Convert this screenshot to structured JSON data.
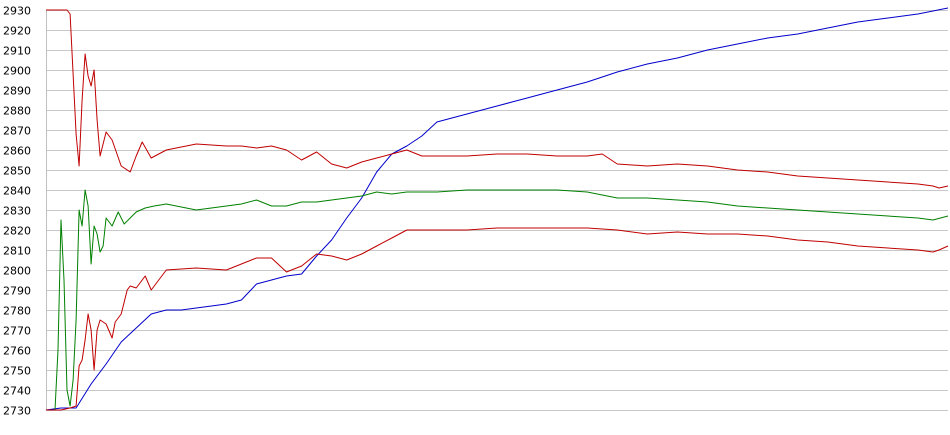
{
  "chart_data": {
    "type": "line",
    "title": "",
    "xlabel": "",
    "ylabel": "",
    "ylim": [
      2730,
      2930
    ],
    "xlim": [
      0,
      300
    ],
    "grid": true,
    "y_ticks": [
      "2930",
      "2920",
      "2910",
      "2900",
      "2890",
      "2880",
      "2870",
      "2860",
      "2850",
      "2840",
      "2830",
      "2820",
      "2810",
      "2800",
      "2790",
      "2780",
      "2770",
      "2760",
      "2750",
      "2740",
      "2730"
    ],
    "colors": {
      "blue": "#0000cc",
      "red": "#c00000",
      "green": "#008000"
    },
    "series": [
      {
        "color": "#0000cc",
        "x": [
          0,
          5,
          10,
          15,
          20,
          25,
          30,
          35,
          40,
          45,
          50,
          55,
          60,
          65,
          70,
          75,
          80,
          85,
          90,
          95,
          100,
          105,
          110,
          115,
          120,
          125,
          130,
          135,
          140,
          145,
          150,
          155,
          160,
          165,
          170,
          180,
          190,
          200,
          210,
          220,
          230,
          240,
          250,
          260,
          270,
          280,
          290,
          300
        ],
        "y": [
          2730,
          2731,
          2731,
          2743,
          2753,
          2764,
          2771,
          2778,
          2780,
          2780,
          2781,
          2782,
          2783,
          2785,
          2793,
          2795,
          2797,
          2798,
          2807,
          2815,
          2826,
          2836,
          2849,
          2858,
          2862,
          2867,
          2874,
          2876,
          2878,
          2880,
          2882,
          2884,
          2886,
          2888,
          2890,
          2894,
          2899,
          2903,
          2906,
          2910,
          2913,
          2916,
          2918,
          2921,
          2924,
          2926,
          2928,
          2931
        ]
      },
      {
        "color": "#c00000",
        "x": [
          0,
          5,
          7,
          8,
          9,
          10,
          11,
          12,
          13,
          14,
          15,
          16,
          17,
          18,
          20,
          22,
          25,
          28,
          30,
          32,
          35,
          40,
          50,
          60,
          65,
          70,
          75,
          80,
          85,
          90,
          95,
          100,
          105,
          110,
          115,
          120,
          125,
          130,
          140,
          150,
          160,
          170,
          180,
          185,
          190,
          200,
          210,
          220,
          230,
          240,
          250,
          260,
          270,
          280,
          290,
          295,
          297,
          300
        ],
        "y": [
          2930,
          2930,
          2930,
          2928,
          2898,
          2868,
          2852,
          2885,
          2908,
          2897,
          2892,
          2900,
          2875,
          2857,
          2869,
          2865,
          2852,
          2849,
          2857,
          2864,
          2856,
          2860,
          2863,
          2862,
          2862,
          2861,
          2862,
          2860,
          2855,
          2859,
          2853,
          2851,
          2854,
          2856,
          2858,
          2860,
          2857,
          2857,
          2857,
          2858,
          2858,
          2857,
          2857,
          2858,
          2853,
          2852,
          2853,
          2852,
          2850,
          2849,
          2847,
          2846,
          2845,
          2844,
          2843,
          2842,
          2841,
          2842
        ]
      },
      {
        "color": "#008000",
        "x": [
          0,
          3,
          4,
          5,
          6,
          7,
          8,
          9,
          10,
          11,
          12,
          13,
          14,
          15,
          16,
          17,
          18,
          19,
          20,
          22,
          24,
          26,
          28,
          30,
          33,
          36,
          40,
          50,
          60,
          65,
          70,
          75,
          80,
          85,
          90,
          95,
          100,
          105,
          110,
          115,
          120,
          125,
          130,
          140,
          150,
          160,
          170,
          180,
          190,
          200,
          210,
          220,
          230,
          240,
          250,
          260,
          270,
          280,
          290,
          295,
          300
        ],
        "y": [
          2730,
          2730,
          2760,
          2825,
          2795,
          2740,
          2732,
          2745,
          2775,
          2830,
          2822,
          2840,
          2832,
          2803,
          2822,
          2818,
          2809,
          2812,
          2826,
          2822,
          2829,
          2823,
          2826,
          2829,
          2831,
          2832,
          2833,
          2830,
          2832,
          2833,
          2835,
          2832,
          2832,
          2834,
          2834,
          2835,
          2836,
          2837,
          2839,
          2838,
          2839,
          2839,
          2839,
          2840,
          2840,
          2840,
          2840,
          2839,
          2836,
          2836,
          2835,
          2834,
          2832,
          2831,
          2830,
          2829,
          2828,
          2827,
          2826,
          2825,
          2827
        ]
      },
      {
        "color": "#c00000",
        "x": [
          0,
          5,
          8,
          10,
          11,
          12,
          13,
          14,
          15,
          16,
          17,
          18,
          20,
          22,
          23,
          25,
          27,
          28,
          30,
          33,
          35,
          40,
          50,
          60,
          65,
          70,
          75,
          80,
          85,
          90,
          95,
          100,
          105,
          110,
          115,
          120,
          125,
          130,
          140,
          150,
          160,
          170,
          180,
          190,
          200,
          210,
          220,
          230,
          240,
          250,
          260,
          270,
          280,
          290,
          295,
          297,
          300
        ],
        "y": [
          2730,
          2730,
          2731,
          2732,
          2752,
          2755,
          2765,
          2778,
          2770,
          2750,
          2770,
          2775,
          2773,
          2766,
          2774,
          2778,
          2790,
          2792,
          2791,
          2797,
          2790,
          2800,
          2801,
          2800,
          2803,
          2806,
          2806,
          2799,
          2802,
          2808,
          2807,
          2805,
          2808,
          2812,
          2816,
          2820,
          2820,
          2820,
          2820,
          2821,
          2821,
          2821,
          2821,
          2820,
          2818,
          2819,
          2818,
          2818,
          2817,
          2815,
          2814,
          2812,
          2811,
          2810,
          2809,
          2810,
          2812
        ]
      }
    ]
  }
}
